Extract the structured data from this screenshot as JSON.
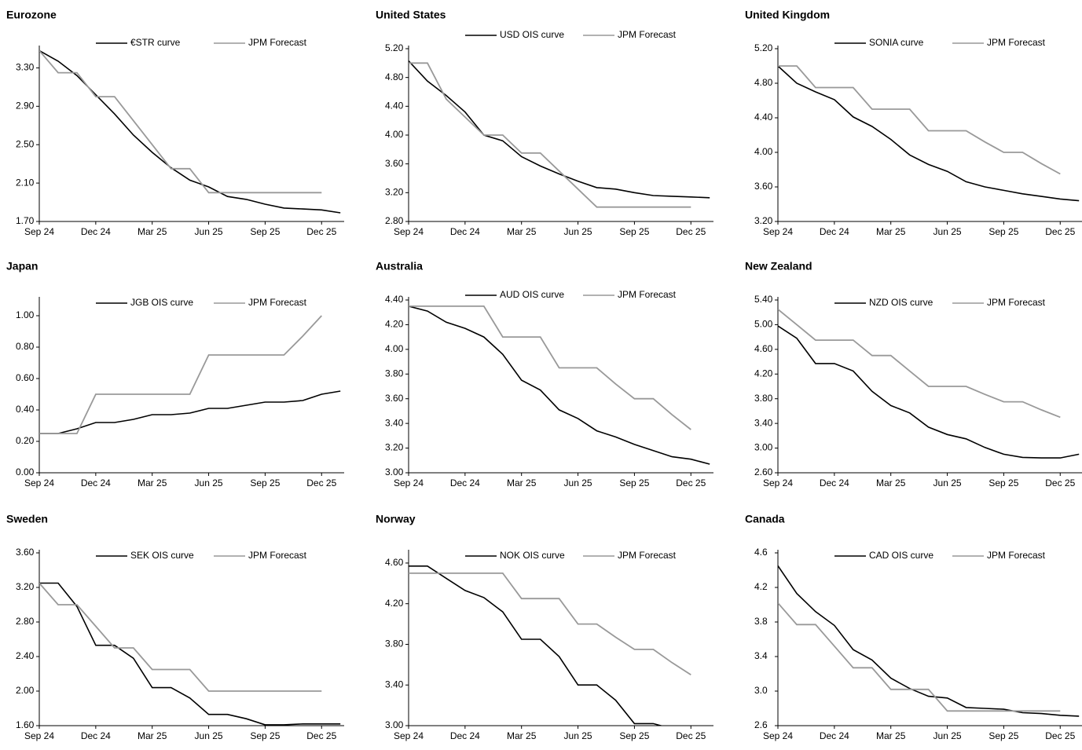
{
  "chart_data": [
    {
      "type": "line",
      "title": "Eurozone",
      "categories": [
        "Sep 24",
        null,
        null,
        "Dec 24",
        null,
        null,
        "Mar 25",
        null,
        null,
        "Jun 25",
        null,
        null,
        "Sep 25",
        null,
        null,
        "Dec 25",
        null
      ],
      "series": [
        {
          "name": "€STR curve",
          "color": "#000000",
          "values": [
            3.48,
            3.37,
            3.22,
            3.02,
            2.82,
            2.6,
            2.42,
            2.26,
            2.13,
            2.06,
            1.96,
            1.93,
            1.88,
            1.84,
            1.83,
            1.82,
            1.79
          ]
        },
        {
          "name": "JPM Forecast",
          "color": "#999999",
          "values": [
            3.48,
            3.25,
            3.25,
            3.0,
            3.0,
            2.75,
            2.5,
            2.25,
            2.25,
            2.0,
            2.0,
            2.0,
            2.0,
            2.0,
            2.0,
            2.0,
            null
          ]
        }
      ],
      "ylim": [
        1.7,
        3.5
      ],
      "yticks": [
        {
          "value": 1.7,
          "label": "1.70"
        },
        {
          "value": 2.1,
          "label": "2.10"
        },
        {
          "value": 2.5,
          "label": "2.50"
        },
        {
          "value": 2.9,
          "label": "2.90"
        },
        {
          "value": 3.3,
          "label": "3.30"
        }
      ]
    },
    {
      "type": "line",
      "title": "United States",
      "categories": [
        "Sep 24",
        null,
        null,
        "Dec 24",
        null,
        null,
        "Mar 25",
        null,
        null,
        "Jun 25",
        null,
        null,
        "Sep 25",
        null,
        null,
        "Dec 25",
        null
      ],
      "series": [
        {
          "name": "USD OIS curve",
          "color": "#000000",
          "values": [
            5.03,
            4.75,
            4.55,
            4.32,
            4.0,
            3.92,
            3.7,
            3.57,
            3.46,
            3.36,
            3.27,
            3.25,
            3.2,
            3.16,
            3.15,
            3.14,
            3.13
          ]
        },
        {
          "name": "JPM Forecast",
          "color": "#999999",
          "values": [
            5.0,
            5.0,
            4.5,
            4.25,
            4.0,
            4.0,
            3.75,
            3.75,
            3.5,
            3.25,
            3.0,
            3.0,
            3.0,
            3.0,
            3.0,
            3.0,
            null
          ]
        }
      ],
      "ylim": [
        2.8,
        5.2
      ],
      "yticks": [
        {
          "value": 2.8,
          "label": "2.80"
        },
        {
          "value": 3.2,
          "label": "3.20"
        },
        {
          "value": 3.6,
          "label": "3.60"
        },
        {
          "value": 4,
          "label": "4.00"
        },
        {
          "value": 4.4,
          "label": "4.40"
        },
        {
          "value": 4.8,
          "label": "4.80"
        },
        {
          "value": 5.2,
          "label": "5.20"
        }
      ]
    },
    {
      "type": "line",
      "title": "United Kingdom",
      "categories": [
        "Sep 24",
        null,
        null,
        "Dec 24",
        null,
        null,
        "Mar 25",
        null,
        null,
        "Jun 25",
        null,
        null,
        "Sep 25",
        null,
        null,
        "Dec 25",
        null
      ],
      "series": [
        {
          "name": "SONIA curve",
          "color": "#000000",
          "values": [
            5.0,
            4.8,
            4.7,
            4.61,
            4.41,
            4.3,
            4.15,
            3.97,
            3.86,
            3.78,
            3.66,
            3.6,
            3.56,
            3.52,
            3.49,
            3.46,
            3.44
          ]
        },
        {
          "name": "JPM Forecast",
          "color": "#999999",
          "values": [
            5.0,
            5.0,
            4.75,
            4.75,
            4.75,
            4.5,
            4.5,
            4.5,
            4.25,
            4.25,
            4.25,
            4.12,
            4.0,
            4.0,
            3.87,
            3.75,
            null
          ]
        }
      ],
      "ylim": [
        3.2,
        5.2
      ],
      "yticks": [
        {
          "value": 3.2,
          "label": "3.20"
        },
        {
          "value": 3.6,
          "label": "3.60"
        },
        {
          "value": 4,
          "label": "4.00"
        },
        {
          "value": 4.4,
          "label": "4.40"
        },
        {
          "value": 4.8,
          "label": "4.80"
        },
        {
          "value": 5.2,
          "label": "5.20"
        }
      ]
    },
    {
      "type": "line",
      "title": "Japan",
      "categories": [
        "Sep 24",
        null,
        null,
        "Dec 24",
        null,
        null,
        "Mar 25",
        null,
        null,
        "Jun 25",
        null,
        null,
        "Sep 25",
        null,
        null,
        "Dec 25",
        null
      ],
      "series": [
        {
          "name": "JGB OIS curve",
          "color": "#000000",
          "values": [
            0.25,
            0.25,
            0.28,
            0.32,
            0.32,
            0.34,
            0.37,
            0.37,
            0.38,
            0.41,
            0.41,
            0.43,
            0.45,
            0.45,
            0.46,
            0.5,
            0.52
          ]
        },
        {
          "name": "JPM Forecast",
          "color": "#999999",
          "values": [
            0.25,
            0.25,
            0.25,
            0.5,
            0.5,
            0.5,
            0.5,
            0.5,
            0.5,
            0.75,
            0.75,
            0.75,
            0.75,
            0.75,
            0.87,
            1.0,
            null
          ]
        }
      ],
      "ylim": [
        0,
        1.1
      ],
      "yticks": [
        {
          "value": 0,
          "label": "0.00"
        },
        {
          "value": 0.2,
          "label": "0.20"
        },
        {
          "value": 0.4,
          "label": "0.40"
        },
        {
          "value": 0.6,
          "label": "0.60"
        },
        {
          "value": 0.8,
          "label": "0.80"
        },
        {
          "value": 1,
          "label": "1.00"
        }
      ]
    },
    {
      "type": "line",
      "title": "Australia",
      "categories": [
        "Sep 24",
        null,
        null,
        "Dec 24",
        null,
        null,
        "Mar 25",
        null,
        null,
        "Jun 25",
        null,
        null,
        "Sep 25",
        null,
        null,
        "Dec 25",
        null
      ],
      "series": [
        {
          "name": "AUD OIS curve",
          "color": "#000000",
          "values": [
            4.35,
            4.31,
            4.22,
            4.17,
            4.1,
            3.96,
            3.75,
            3.67,
            3.51,
            3.44,
            3.34,
            3.29,
            3.23,
            3.18,
            3.13,
            3.11,
            3.07
          ]
        },
        {
          "name": "JPM Forecast",
          "color": "#999999",
          "values": [
            4.35,
            4.35,
            4.35,
            4.35,
            4.35,
            4.1,
            4.1,
            4.1,
            3.85,
            3.85,
            3.85,
            3.72,
            3.6,
            3.6,
            3.47,
            3.35,
            null
          ]
        }
      ],
      "ylim": [
        3.0,
        4.4
      ],
      "yticks": [
        {
          "value": 3,
          "label": "3.00"
        },
        {
          "value": 3.2,
          "label": "3.20"
        },
        {
          "value": 3.4,
          "label": "3.40"
        },
        {
          "value": 3.6,
          "label": "3.60"
        },
        {
          "value": 3.8,
          "label": "3.80"
        },
        {
          "value": 4,
          "label": "4.00"
        },
        {
          "value": 4.2,
          "label": "4.20"
        },
        {
          "value": 4.4,
          "label": "4.40"
        }
      ]
    },
    {
      "type": "line",
      "title": "New Zealand",
      "categories": [
        "Sep 24",
        null,
        null,
        "Dec 24",
        null,
        null,
        "Mar 25",
        null,
        null,
        "Jun 25",
        null,
        null,
        "Sep 25",
        null,
        null,
        "Dec 25",
        null
      ],
      "series": [
        {
          "name": "NZD OIS curve",
          "color": "#000000",
          "values": [
            4.98,
            4.78,
            4.37,
            4.37,
            4.25,
            3.92,
            3.69,
            3.57,
            3.34,
            3.22,
            3.15,
            3.01,
            2.9,
            2.85,
            2.84,
            2.84,
            2.9
          ]
        },
        {
          "name": "JPM Forecast",
          "color": "#999999",
          "values": [
            5.25,
            5.0,
            4.75,
            4.75,
            4.75,
            4.5,
            4.5,
            4.25,
            4.0,
            4.0,
            4.0,
            3.87,
            3.75,
            3.75,
            3.62,
            3.5,
            null
          ]
        }
      ],
      "ylim": [
        2.6,
        5.4
      ],
      "yticks": [
        {
          "value": 2.6,
          "label": "2.60"
        },
        {
          "value": 3,
          "label": "3.00"
        },
        {
          "value": 3.4,
          "label": "3.40"
        },
        {
          "value": 3.8,
          "label": "3.80"
        },
        {
          "value": 4.2,
          "label": "4.20"
        },
        {
          "value": 4.6,
          "label": "4.60"
        },
        {
          "value": 5,
          "label": "5.00"
        },
        {
          "value": 5.4,
          "label": "5.40"
        }
      ]
    },
    {
      "type": "line",
      "title": "Sweden",
      "categories": [
        "Sep 24",
        null,
        null,
        "Dec 24",
        null,
        null,
        "Mar 25",
        null,
        null,
        "Jun 25",
        null,
        null,
        "Sep 25",
        null,
        null,
        "Dec 25",
        null
      ],
      "series": [
        {
          "name": "SEK OIS curve",
          "color": "#000000",
          "values": [
            3.25,
            3.25,
            2.98,
            2.53,
            2.53,
            2.38,
            2.04,
            2.04,
            1.92,
            1.73,
            1.73,
            1.68,
            1.61,
            1.61,
            1.62,
            1.62,
            1.62
          ]
        },
        {
          "name": "JPM Forecast",
          "color": "#999999",
          "values": [
            3.25,
            3.0,
            3.0,
            2.75,
            2.5,
            2.5,
            2.25,
            2.25,
            2.25,
            2.0,
            2.0,
            2.0,
            2.0,
            2.0,
            2.0,
            2.0,
            null
          ]
        }
      ],
      "ylim": [
        1.6,
        3.6
      ],
      "yticks": [
        {
          "value": 1.6,
          "label": "1.60"
        },
        {
          "value": 2,
          "label": "2.00"
        },
        {
          "value": 2.4,
          "label": "2.40"
        },
        {
          "value": 2.8,
          "label": "2.80"
        },
        {
          "value": 3.2,
          "label": "3.20"
        },
        {
          "value": 3.6,
          "label": "3.60"
        }
      ]
    },
    {
      "type": "line",
      "title": "Norway",
      "categories": [
        "Sep 24",
        null,
        null,
        "Dec 24",
        null,
        null,
        "Mar 25",
        null,
        null,
        "Jun 25",
        null,
        null,
        "Sep 25",
        null,
        null,
        "Dec 25",
        null
      ],
      "series": [
        {
          "name": "NOK OIS curve",
          "color": "#000000",
          "values": [
            4.57,
            4.57,
            4.45,
            4.33,
            4.26,
            4.12,
            3.85,
            3.85,
            3.68,
            3.4,
            3.4,
            3.25,
            3.02,
            3.02,
            2.97,
            null,
            null
          ]
        },
        {
          "name": "JPM Forecast",
          "color": "#999999",
          "values": [
            4.5,
            4.5,
            4.5,
            4.5,
            4.5,
            4.5,
            4.25,
            4.25,
            4.25,
            4.0,
            4.0,
            3.87,
            3.75,
            3.75,
            3.62,
            3.5,
            null
          ]
        }
      ],
      "ylim": [
        3.0,
        4.7
      ],
      "yticks": [
        {
          "value": 3,
          "label": "3.00"
        },
        {
          "value": 3.4,
          "label": "3.40"
        },
        {
          "value": 3.8,
          "label": "3.80"
        },
        {
          "value": 4.2,
          "label": "4.20"
        },
        {
          "value": 4.6,
          "label": "4.60"
        }
      ]
    },
    {
      "type": "line",
      "title": "Canada",
      "categories": [
        "Sep 24",
        null,
        null,
        "Dec 24",
        null,
        null,
        "Mar 25",
        null,
        null,
        "Jun 25",
        null,
        null,
        "Sep 25",
        null,
        null,
        "Dec 25",
        null
      ],
      "series": [
        {
          "name": "CAD OIS curve",
          "color": "#000000",
          "values": [
            4.45,
            4.13,
            3.92,
            3.76,
            3.48,
            3.36,
            3.15,
            3.03,
            2.94,
            2.92,
            2.81,
            2.8,
            2.79,
            2.75,
            2.74,
            2.72,
            2.71
          ]
        },
        {
          "name": "JPM Forecast",
          "color": "#999999",
          "values": [
            4.02,
            3.77,
            3.77,
            3.52,
            3.27,
            3.27,
            3.02,
            3.02,
            3.02,
            2.77,
            2.77,
            2.77,
            2.77,
            2.77,
            2.77,
            2.77,
            null
          ]
        }
      ],
      "ylim": [
        2.6,
        4.6
      ],
      "yticks": [
        2.6,
        {
          "value": 3,
          "label": "3.0"
        },
        3.4,
        3.8,
        4.2,
        4.6
      ]
    }
  ]
}
